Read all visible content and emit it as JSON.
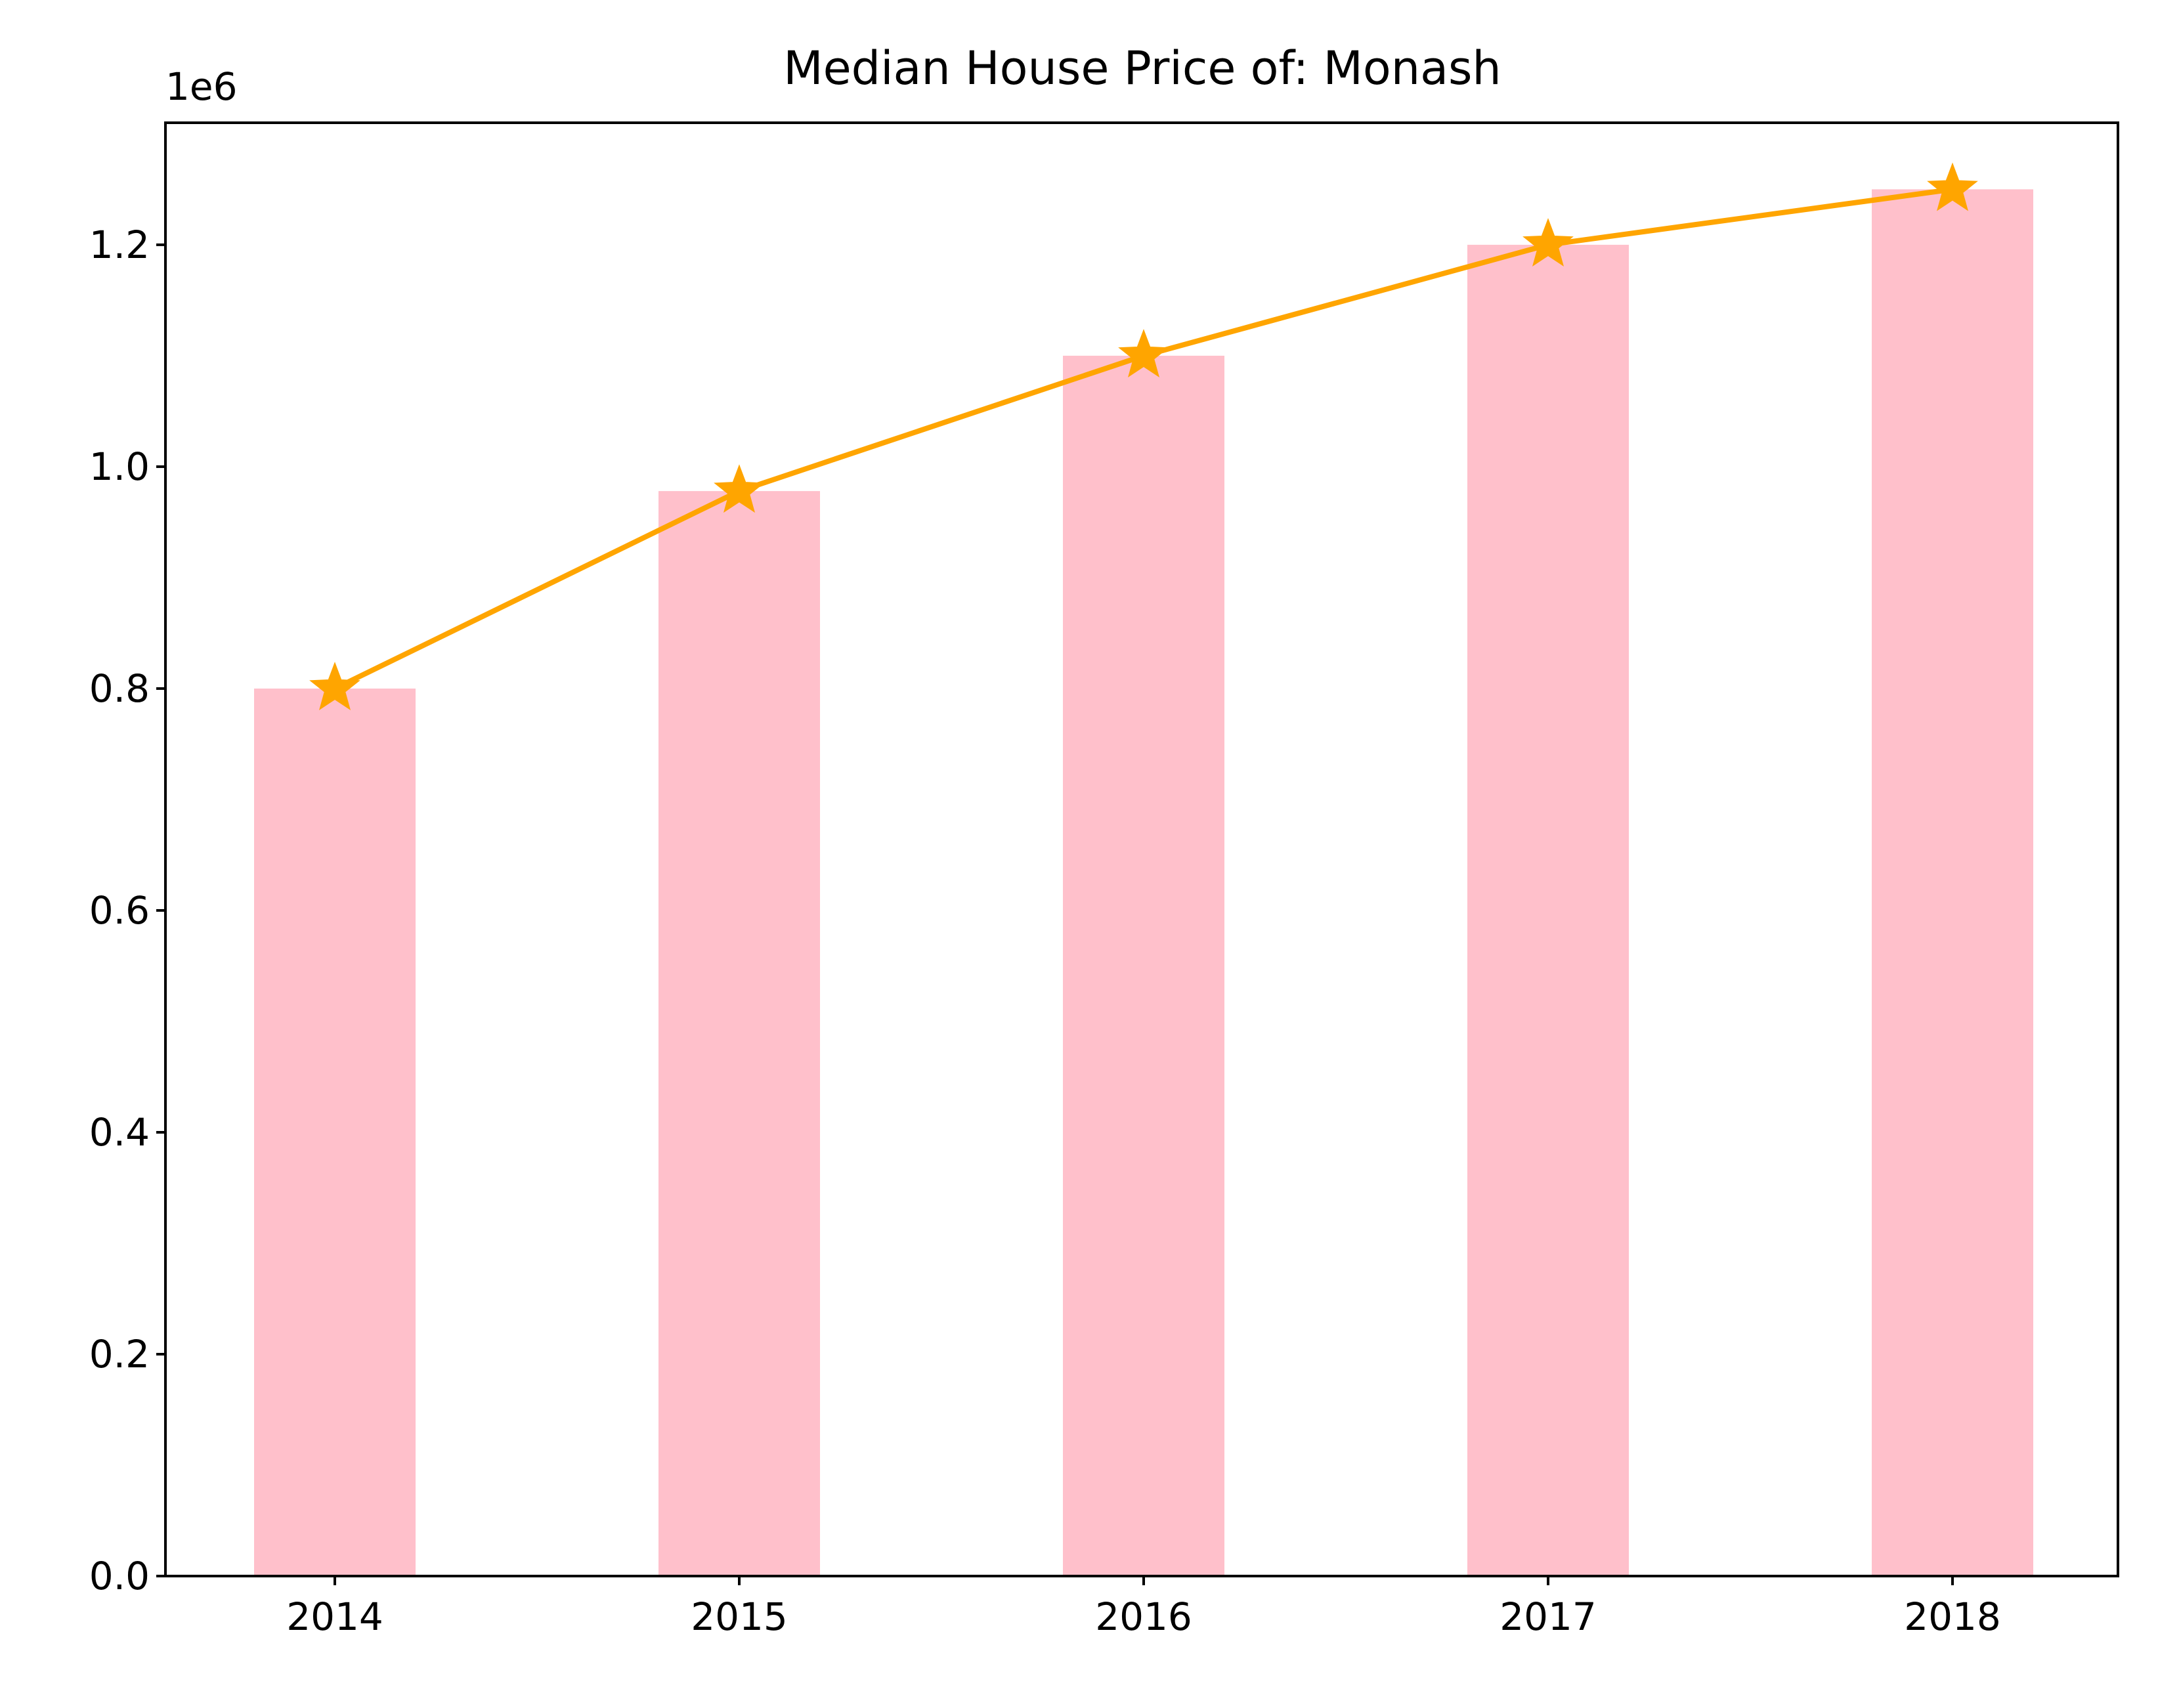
{
  "chart_data": {
    "type": "bar",
    "title": "Median House Price of: Monash",
    "xlabel": "",
    "ylabel": "",
    "offset_label": "1e6",
    "categories": [
      "2014",
      "2015",
      "2016",
      "2017",
      "2018"
    ],
    "values": [
      800000,
      978000,
      1100000,
      1200000,
      1250000
    ],
    "line_values": [
      800000,
      978000,
      1100000,
      1200000,
      1250000
    ],
    "ylim": [
      0,
      1310000
    ],
    "y_ticks": [
      0,
      200000,
      400000,
      600000,
      800000,
      1000000,
      1200000
    ],
    "y_tick_labels": [
      "0.0",
      "0.2",
      "0.4",
      "0.6",
      "0.8",
      "1.0",
      "1.2"
    ],
    "grid": false,
    "bar_color": "#ffc0cb",
    "line_color": "#ffa500",
    "marker": "star-icon"
  }
}
